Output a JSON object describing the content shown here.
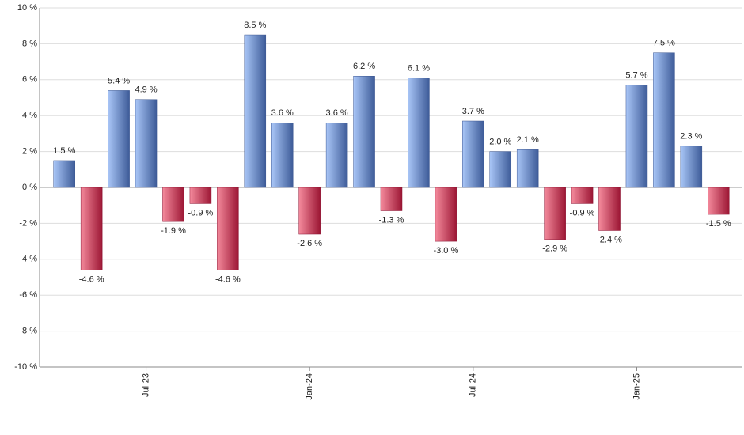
{
  "chart_data": {
    "type": "bar",
    "categories": [
      null,
      null,
      null,
      "Jul-23",
      null,
      null,
      null,
      null,
      null,
      "Jan-24",
      null,
      null,
      null,
      null,
      null,
      "Jul-24",
      null,
      null,
      null,
      null,
      null,
      "Jan-25",
      null,
      null,
      null
    ],
    "values": [
      1.5,
      -4.6,
      5.4,
      4.9,
      -1.9,
      -0.9,
      -4.6,
      8.5,
      3.6,
      -2.6,
      3.6,
      6.2,
      -1.3,
      6.1,
      -3.0,
      3.7,
      2.0,
      2.1,
      -2.9,
      -0.9,
      -2.4,
      5.7,
      7.5,
      2.3,
      -1.5
    ],
    "value_labels": [
      "1.5 %",
      "-4.6 %",
      "5.4 %",
      "4.9 %",
      "-1.9 %",
      "-0.9 %",
      "-4.6 %",
      "8.5 %",
      "3.6 %",
      "-2.6 %",
      "3.6 %",
      "6.2 %",
      "-1.3 %",
      "6.1 %",
      "-3.0 %",
      "3.7 %",
      "2.0 %",
      "2.1 %",
      "-2.9 %",
      "-0.9 %",
      "-2.4 %",
      "5.7 %",
      "7.5 %",
      "2.3 %",
      "-1.5 %"
    ],
    "ylim": [
      -10,
      10
    ],
    "yticks": [
      {
        "value": -10,
        "label": "-10 %"
      },
      {
        "value": -8,
        "label": "-8 %"
      },
      {
        "value": -6,
        "label": "-6 %"
      },
      {
        "value": -4,
        "label": "-4 %"
      },
      {
        "value": -2,
        "label": "-2 %"
      },
      {
        "value": 0,
        "label": "0 %"
      },
      {
        "value": 2,
        "label": "2 %"
      },
      {
        "value": 4,
        "label": "4 %"
      },
      {
        "value": 6,
        "label": "6 %"
      },
      {
        "value": 8,
        "label": "8 %"
      },
      {
        "value": 10,
        "label": "10 %"
      }
    ],
    "grid": true,
    "positive_color": [
      "#a9c6f7",
      "#3d5b98"
    ],
    "negative_color": [
      "#f48a9c",
      "#9c1634"
    ]
  }
}
